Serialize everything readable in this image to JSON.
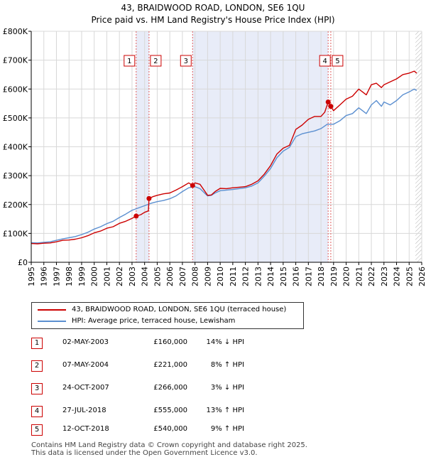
{
  "title_line1": "43, BRAIDWOOD ROAD, LONDON, SE6 1QU",
  "title_line2": "Price paid vs. HM Land Registry's House Price Index (HPI)",
  "chart_data": {
    "type": "line",
    "title": "43, BRAIDWOOD ROAD, LONDON, SE6 1QU — Price paid vs. HM Land Registry's House Price Index (HPI)",
    "xlabel": "",
    "ylabel": "",
    "xlim": [
      1995,
      2026
    ],
    "ylim": [
      0,
      800000
    ],
    "y_ticks": [
      0,
      100000,
      200000,
      300000,
      400000,
      500000,
      600000,
      700000,
      800000
    ],
    "y_tick_labels": [
      "£0",
      "£100K",
      "£200K",
      "£300K",
      "£400K",
      "£500K",
      "£600K",
      "£700K",
      "£800K"
    ],
    "x_ticks": [
      1995,
      1996,
      1997,
      1998,
      1999,
      2000,
      2001,
      2002,
      2003,
      2004,
      2005,
      2006,
      2007,
      2008,
      2009,
      2010,
      2011,
      2012,
      2013,
      2014,
      2015,
      2016,
      2017,
      2018,
      2019,
      2020,
      2021,
      2022,
      2023,
      2024,
      2025,
      2026
    ],
    "x_tick_labels": [
      "1995",
      "1996",
      "1997",
      "1998",
      "1999",
      "2000",
      "2001",
      "2002",
      "2003",
      "2004",
      "2005",
      "2006",
      "2007",
      "2008",
      "2009",
      "2010",
      "2011",
      "2012",
      "2013",
      "2014",
      "2015",
      "2016",
      "2017",
      "2018",
      "2019",
      "2020",
      "2021",
      "2022",
      "2023",
      "2024",
      "2025",
      "2026"
    ],
    "grid": true,
    "shaded_ranges": [
      [
        2003.33,
        2004.35
      ],
      [
        2007.81,
        2018.57
      ]
    ],
    "hatched_from": 2025.5,
    "colors": {
      "property": "#cc0000",
      "hpi": "#5b8fd0",
      "shade": "#e8ecf8",
      "grid": "#d8d8d8"
    },
    "series": [
      {
        "name": "43, BRAIDWOOD ROAD, LONDON, SE6 1QU (terraced house)",
        "color": "#cc0000",
        "x": [
          1995.0,
          1995.5,
          1996.0,
          1996.5,
          1997.0,
          1997.5,
          1998.0,
          1998.5,
          1999.0,
          1999.5,
          2000.0,
          2000.5,
          2001.0,
          2001.5,
          2002.0,
          2002.5,
          2003.0,
          2003.33,
          2003.7,
          2004.0,
          2004.3,
          2004.35,
          2004.7,
          2005.0,
          2005.5,
          2006.0,
          2006.5,
          2007.0,
          2007.5,
          2007.81,
          2008.0,
          2008.4,
          2008.8,
          2009.0,
          2009.3,
          2009.6,
          2010.0,
          2010.5,
          2011.0,
          2011.5,
          2012.0,
          2012.5,
          2013.0,
          2013.5,
          2014.0,
          2014.5,
          2015.0,
          2015.5,
          2016.0,
          2016.5,
          2017.0,
          2017.5,
          2018.0,
          2018.3,
          2018.57,
          2018.78,
          2019.0,
          2019.5,
          2020.0,
          2020.5,
          2021.0,
          2021.3,
          2021.6,
          2022.0,
          2022.4,
          2022.8,
          2023.0,
          2023.5,
          2024.0,
          2024.5,
          2025.0,
          2025.4,
          2025.6
        ],
        "y": [
          65000,
          64000,
          66000,
          67000,
          71000,
          76000,
          77000,
          80000,
          85000,
          92000,
          102000,
          108000,
          118000,
          123000,
          135000,
          142000,
          152000,
          160000,
          165000,
          173000,
          178000,
          221000,
          228000,
          232000,
          237000,
          240000,
          250000,
          262000,
          275000,
          266000,
          275000,
          270000,
          245000,
          232000,
          233000,
          245000,
          256000,
          255000,
          258000,
          260000,
          262000,
          270000,
          282000,
          305000,
          335000,
          375000,
          395000,
          405000,
          460000,
          475000,
          495000,
          505000,
          505000,
          520000,
          555000,
          540000,
          525000,
          545000,
          565000,
          575000,
          600000,
          590000,
          580000,
          615000,
          620000,
          605000,
          615000,
          625000,
          635000,
          650000,
          655000,
          662000,
          655000
        ]
      },
      {
        "name": "HPI: Average price, terraced house, Lewisham",
        "color": "#5b8fd0",
        "x": [
          1995.0,
          1995.5,
          1996.0,
          1996.5,
          1997.0,
          1997.5,
          1998.0,
          1998.5,
          1999.0,
          1999.5,
          2000.0,
          2000.5,
          2001.0,
          2001.5,
          2002.0,
          2002.5,
          2003.0,
          2003.5,
          2004.0,
          2004.5,
          2005.0,
          2005.5,
          2006.0,
          2006.5,
          2007.0,
          2007.5,
          2008.0,
          2008.4,
          2008.8,
          2009.0,
          2009.3,
          2009.6,
          2010.0,
          2010.5,
          2011.0,
          2011.5,
          2012.0,
          2012.5,
          2013.0,
          2013.5,
          2014.0,
          2014.5,
          2015.0,
          2015.5,
          2016.0,
          2016.5,
          2017.0,
          2017.5,
          2018.0,
          2018.5,
          2019.0,
          2019.5,
          2020.0,
          2020.5,
          2021.0,
          2021.3,
          2021.6,
          2022.0,
          2022.4,
          2022.8,
          2023.0,
          2023.5,
          2024.0,
          2024.5,
          2025.0,
          2025.4,
          2025.6
        ],
        "y": [
          68000,
          67000,
          69000,
          71000,
          76000,
          81000,
          85000,
          89000,
          96000,
          104000,
          115000,
          123000,
          134000,
          142000,
          155000,
          167000,
          180000,
          188000,
          196000,
          204000,
          210000,
          214000,
          220000,
          230000,
          245000,
          258000,
          262000,
          255000,
          238000,
          230000,
          232000,
          240000,
          248000,
          250000,
          252000,
          255000,
          258000,
          264000,
          275000,
          298000,
          325000,
          362000,
          385000,
          398000,
          435000,
          445000,
          450000,
          455000,
          463000,
          478000,
          478000,
          490000,
          508000,
          515000,
          535000,
          525000,
          515000,
          545000,
          560000,
          540000,
          555000,
          545000,
          560000,
          580000,
          590000,
          600000,
          595000
        ]
      }
    ],
    "sales": [
      {
        "id": "1",
        "x": 2003.33,
        "value": 160000
      },
      {
        "id": "2",
        "x": 2004.35,
        "value": 221000
      },
      {
        "id": "3",
        "x": 2007.81,
        "value": 266000
      },
      {
        "id": "4",
        "x": 2018.57,
        "value": 555000
      },
      {
        "id": "5",
        "x": 2018.78,
        "value": 540000
      }
    ]
  },
  "legend": {
    "property_label": "43, BRAIDWOOD ROAD, LONDON, SE6 1QU (terraced house)",
    "hpi_label": "HPI: Average price, terraced house, Lewisham"
  },
  "sales_table": [
    {
      "num": "1",
      "date": "02-MAY-2003",
      "price": "£160,000",
      "pct": "14% ↓ HPI"
    },
    {
      "num": "2",
      "date": "07-MAY-2004",
      "price": "£221,000",
      "pct": "8% ↑ HPI"
    },
    {
      "num": "3",
      "date": "24-OCT-2007",
      "price": "£266,000",
      "pct": "3% ↓ HPI"
    },
    {
      "num": "4",
      "date": "27-JUL-2018",
      "price": "£555,000",
      "pct": "13% ↑ HPI"
    },
    {
      "num": "5",
      "date": "12-OCT-2018",
      "price": "£540,000",
      "pct": "9% ↑ HPI"
    }
  ],
  "footer": {
    "line1": "Contains HM Land Registry data © Crown copyright and database right 2025.",
    "line2": "This data is licensed under the Open Government Licence v3.0."
  }
}
